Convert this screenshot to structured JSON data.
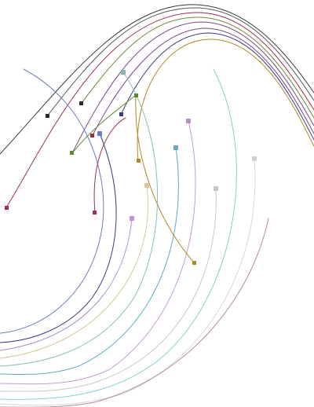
{
  "artwork": {
    "description_free": true,
    "curves": [
      {
        "id": "arc-black-1",
        "color": "#3a3a3a"
      },
      {
        "id": "arc-black-2",
        "color": "#5a5a5a"
      },
      {
        "id": "arc-crimson",
        "color": "#a0304a"
      },
      {
        "id": "arc-olive",
        "color": "#6e8a32"
      },
      {
        "id": "arc-purple",
        "color": "#7a4a8a"
      },
      {
        "id": "arc-gold",
        "color": "#b08a20"
      },
      {
        "id": "spiral-blue",
        "color": "#6a7ec8"
      },
      {
        "id": "spiral-indigo",
        "color": "#3a3a8a"
      },
      {
        "id": "spiral-lavender",
        "color": "#b08ad0"
      },
      {
        "id": "spiral-tan",
        "color": "#d8c8a0"
      },
      {
        "id": "spiral-teal",
        "color": "#5ab0c8"
      },
      {
        "id": "spiral-seagreen",
        "color": "#8ac0b8"
      },
      {
        "id": "spiral-lilac",
        "color": "#c89ad8"
      },
      {
        "id": "spiral-silver",
        "color": "#c8c8c8"
      },
      {
        "id": "spiral-aqua",
        "color": "#80d0d0"
      },
      {
        "id": "spiral-lightgray",
        "color": "#d8d8d8"
      },
      {
        "id": "spiral-mauve",
        "color": "#b88aa0"
      }
    ],
    "markers": [
      {
        "id": "marker-black-a",
        "color": "#2a2a2a"
      },
      {
        "id": "marker-black-b",
        "color": "#2a2a2a"
      },
      {
        "id": "marker-crimson",
        "color": "#a0304a"
      },
      {
        "id": "marker-olive-low",
        "color": "#5a8a32"
      },
      {
        "id": "marker-olive-high",
        "color": "#5a8a32"
      },
      {
        "id": "marker-indigo",
        "color": "#3a3a8a"
      },
      {
        "id": "marker-blue",
        "color": "#6a7ec8"
      },
      {
        "id": "marker-seagreen",
        "color": "#8ab0b0"
      },
      {
        "id": "marker-gold-mid",
        "color": "#b08a20"
      },
      {
        "id": "marker-gold-low",
        "color": "#b08a20"
      },
      {
        "id": "marker-lilac",
        "color": "#b890d0"
      },
      {
        "id": "marker-teal",
        "color": "#6aaac8"
      },
      {
        "id": "marker-tan",
        "color": "#d8c8a0"
      },
      {
        "id": "marker-silver",
        "color": "#c8c8c8"
      },
      {
        "id": "marker-lightgray",
        "color": "#d0d0d0"
      },
      {
        "id": "marker-lavender",
        "color": "#c090d0"
      },
      {
        "id": "marker-red-left",
        "color": "#a0304a"
      },
      {
        "id": "marker-red-mid",
        "color": "#a0304a"
      }
    ]
  }
}
